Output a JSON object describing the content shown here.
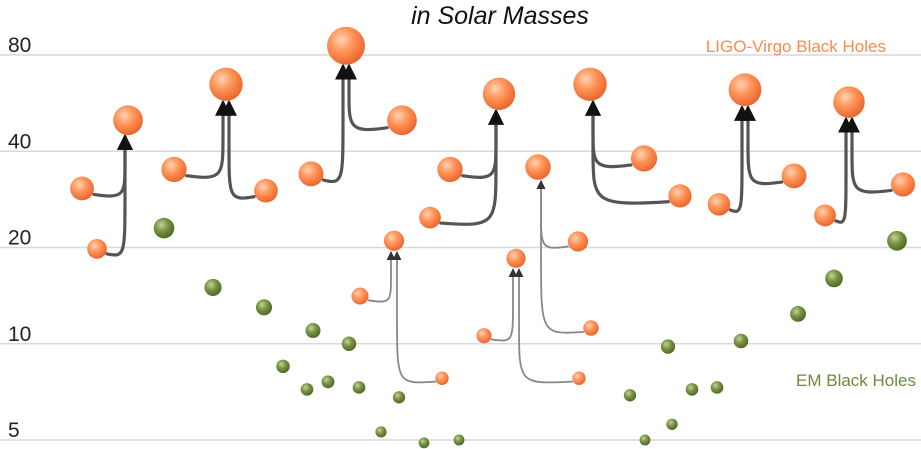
{
  "chart_data": {
    "type": "scatter",
    "title": "in Solar Masses",
    "xlabel": "",
    "ylabel": "",
    "y_scale": "log2",
    "yticks": [
      5,
      10,
      20,
      40,
      80
    ],
    "ylim": [
      4.6,
      112
    ],
    "grid": true,
    "legend_placement": "inline-right",
    "colors": {
      "ligo": "#ff8a50",
      "em": "#6e8a3c",
      "arrow_dark": "#555555",
      "arrow_light": "#888888",
      "grid": "#d9d9d9"
    },
    "series": [
      {
        "name": "LIGO-Virgo Black Holes",
        "mergers": [
          {
            "a": 30.6,
            "b": 19.8,
            "final": 50.0
          },
          {
            "a": 35.1,
            "b": 30.1,
            "final": 64.8
          },
          {
            "a": 34.0,
            "b": 50.0,
            "final": 85.5
          },
          {
            "a": 35.1,
            "b": 24.8,
            "final": 60.5
          },
          {
            "a": 20.9,
            "b": 11.2,
            "final": 35.7
          },
          {
            "a": 14.1,
            "b": 7.8,
            "final": 21.0
          },
          {
            "a": 10.6,
            "b": 7.8,
            "final": 18.5
          },
          {
            "a": 38.0,
            "b": 29.0,
            "final": 64.8
          },
          {
            "a": 27.3,
            "b": 33.5,
            "final": 62.3
          },
          {
            "a": 25.2,
            "b": 31.5,
            "final": 57.0
          },
          {
            "a": 36.0,
            "b": 22.6,
            "final": 66.8
          },
          {
            "a": 24.7,
            "b": 14.1,
            "final": 40.0
          }
        ]
      },
      {
        "name": "EM Black Holes",
        "masses": [
          23.0,
          15.0,
          13.0,
          11.0,
          10.0,
          8.5,
          7.2,
          7.6,
          7.3,
          6.8,
          5.3,
          4.9,
          5.0,
          6.9,
          5.0,
          5.6,
          9.8,
          7.2,
          7.3,
          10.2,
          12.4,
          16.0,
          21.0
        ]
      }
    ]
  }
}
